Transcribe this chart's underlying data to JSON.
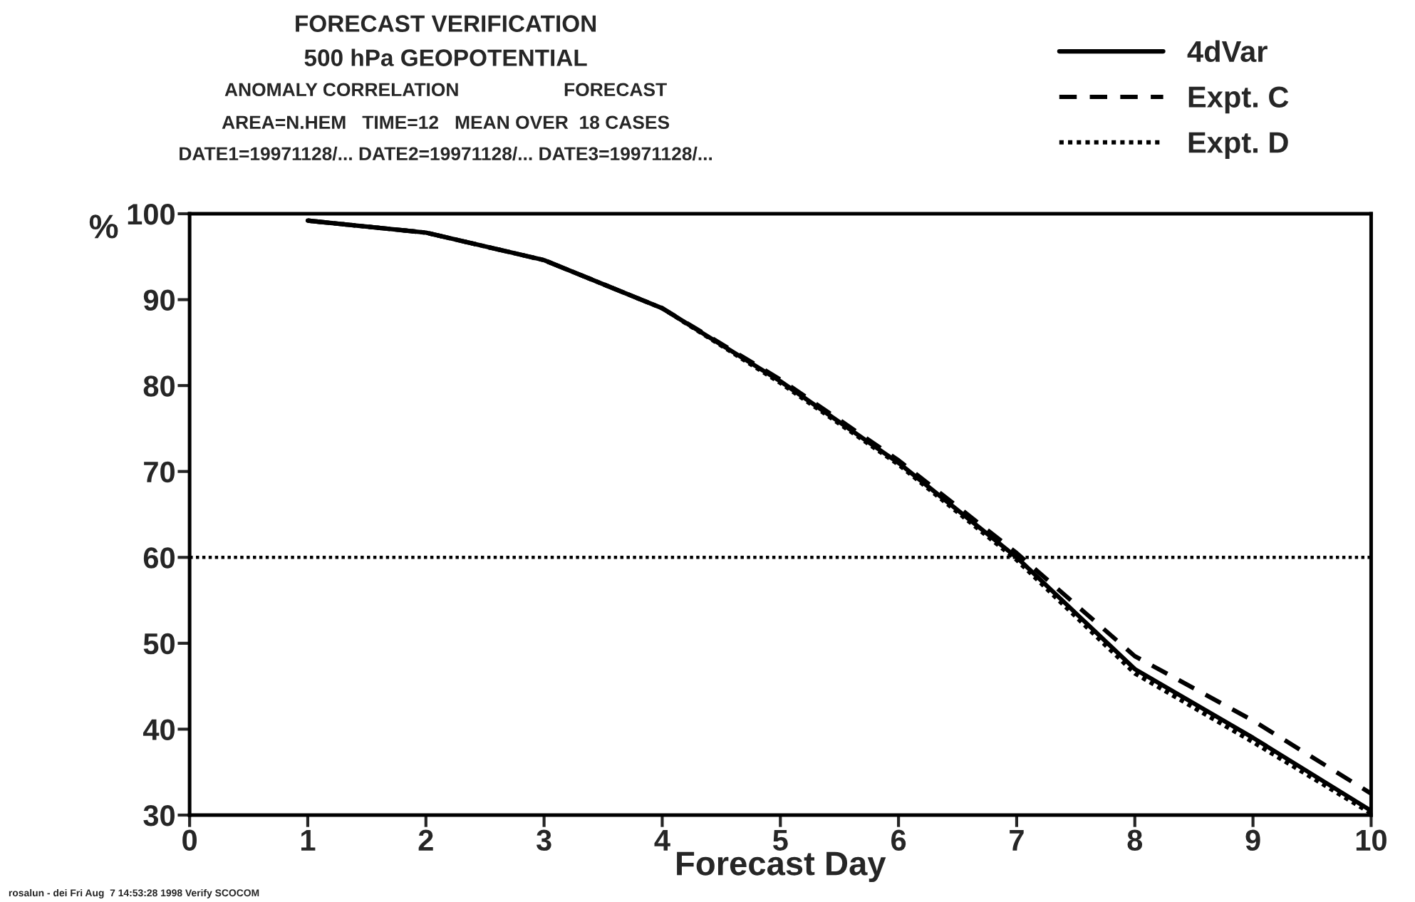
{
  "chart_data": {
    "type": "line",
    "title": "FORECAST VERIFICATION",
    "subtitle": "500 hPa GEOPOTENTIAL",
    "annotations": [
      "ANOMALY CORRELATION                    FORECAST",
      "AREA=N.HEM   TIME=12   MEAN OVER  18 CASES",
      "DATE1=19971128/... DATE2=19971128/... DATE3=19971128/...",
      "rosalun - dei Fri Aug  7 14:53:28 1998 Verify SCOCOM"
    ],
    "xlabel": "Forecast Day",
    "ylabel": "%",
    "x": [
      1,
      2,
      3,
      4,
      5,
      6,
      7,
      8,
      9,
      10
    ],
    "series": [
      {
        "name": "4dVar",
        "color": "#000000",
        "line_style": "solid",
        "values": [
          99.2,
          97.8,
          94.6,
          89.0,
          80.5,
          71.0,
          60.0,
          47.0,
          39.0,
          30.5
        ]
      },
      {
        "name": "Expt. C",
        "color": "#000000",
        "line_style": "dashed",
        "values": [
          99.2,
          97.8,
          94.6,
          89.0,
          80.7,
          71.3,
          60.5,
          48.5,
          41.0,
          32.5
        ]
      },
      {
        "name": "Expt. D",
        "color": "#000000",
        "line_style": "dotted",
        "values": [
          99.2,
          97.8,
          94.6,
          89.0,
          80.3,
          70.8,
          59.7,
          46.5,
          38.5,
          30.2
        ]
      }
    ],
    "ref_lines": [
      {
        "axis": "y",
        "value": 60,
        "color": "#000000",
        "line_style": "dotted"
      }
    ],
    "xlim": [
      0,
      10
    ],
    "xticks": [
      0,
      1,
      2,
      3,
      4,
      5,
      6,
      7,
      8,
      9,
      10
    ],
    "ylim": [
      30,
      100
    ],
    "yticks": [
      30,
      40,
      50,
      60,
      70,
      80,
      90,
      100
    ],
    "grid": false,
    "legend": "top right",
    "marker": "none"
  }
}
